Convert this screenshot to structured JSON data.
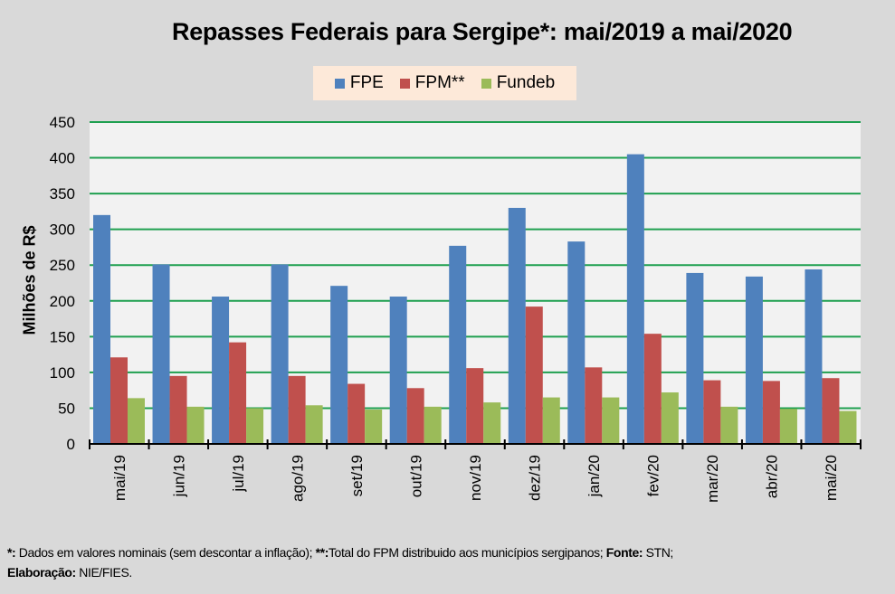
{
  "chart_data": {
    "type": "bar",
    "title": "Repasses Federais para Sergipe*: mai/2019 a mai/2020",
    "xlabel": "",
    "ylabel": "Milhões de R$",
    "ylim": [
      0,
      450
    ],
    "yticks": [
      0,
      50,
      100,
      150,
      200,
      250,
      300,
      350,
      400,
      450
    ],
    "grid": true,
    "legend_position": "top-center",
    "categories": [
      "mai/19",
      "jun/19",
      "jul/19",
      "ago/19",
      "set/19",
      "out/19",
      "nov/19",
      "dez/19",
      "jan/20",
      "fev/20",
      "mar/20",
      "abr/20",
      "mai/20"
    ],
    "series": [
      {
        "name": "FPE",
        "color": "#4f81bd",
        "values": [
          320,
          251,
          206,
          251,
          221,
          206,
          277,
          330,
          283,
          405,
          239,
          234,
          244
        ]
      },
      {
        "name": "FPM**",
        "color": "#c0504d",
        "values": [
          121,
          95,
          142,
          95,
          84,
          78,
          106,
          192,
          107,
          154,
          89,
          88,
          92
        ]
      },
      {
        "name": "Fundeb",
        "color": "#9bbb59",
        "values": [
          64,
          52,
          50,
          54,
          48,
          52,
          58,
          65,
          65,
          72,
          52,
          49,
          46
        ]
      }
    ]
  },
  "colors": {
    "background": "#d9d9d9",
    "plot_background": "#f2f2f2",
    "gridline": "#1fa050",
    "legend_background": "#fde9d9"
  },
  "footnote": {
    "part1_bold": "*:",
    "part1": " Dados em valores nominais (sem descontar a inflação); ",
    "part2_bold": "**:",
    "part2": "Total  do FPM distribuido aos municípios sergipanos; ",
    "part3_bold": "Fonte:",
    "part3": " STN;",
    "part4_bold": "Elaboração:",
    "part4": " NIE/FIES."
  }
}
